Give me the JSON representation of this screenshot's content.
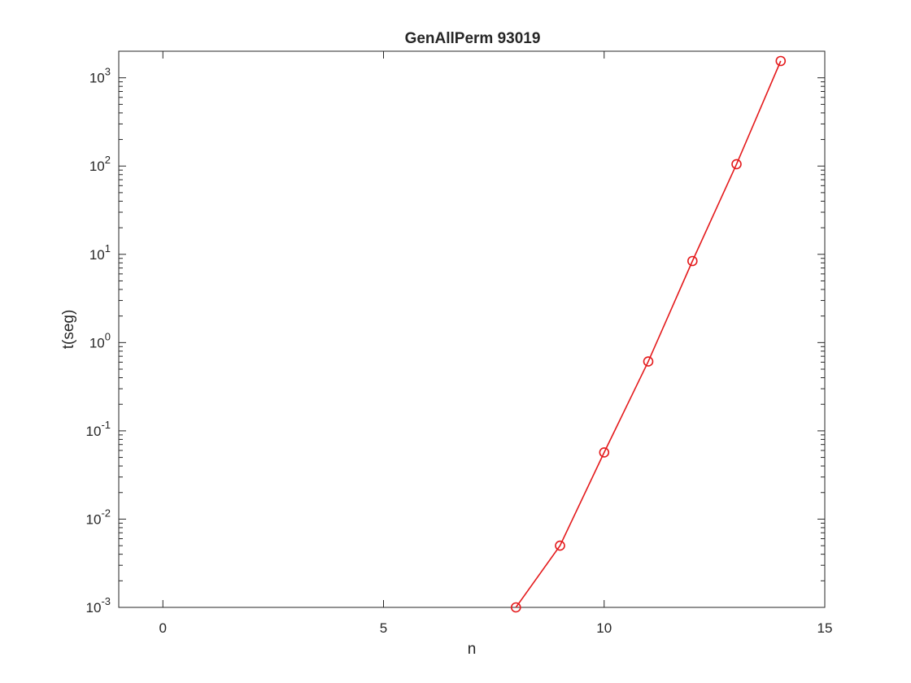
{
  "chart_data": {
    "type": "line",
    "title": "GenAllPerm 93019",
    "xlabel": "n",
    "ylabel": "t(seg)",
    "xlim": [
      -1,
      15
    ],
    "ylim": [
      0.001,
      2000
    ],
    "yscale": "log",
    "grid": false,
    "box": true,
    "xticks": [
      0,
      5,
      10,
      15
    ],
    "xtick_labels": [
      "0",
      "5",
      "10",
      "15"
    ],
    "yticks": [
      0.001,
      0.01,
      0.1,
      1,
      10,
      100,
      1000
    ],
    "ytick_labels": [
      {
        "base": "10",
        "exp": "-3"
      },
      {
        "base": "10",
        "exp": "-2"
      },
      {
        "base": "10",
        "exp": "-1"
      },
      {
        "base": "10",
        "exp": "0"
      },
      {
        "base": "10",
        "exp": "1"
      },
      {
        "base": "10",
        "exp": "2"
      },
      {
        "base": "10",
        "exp": "3"
      }
    ],
    "series": [
      {
        "color": "#e41a1c",
        "marker": "circle",
        "x": [
          8,
          9,
          10,
          11,
          12,
          13,
          14
        ],
        "y": [
          0.001,
          0.005,
          0.057,
          0.61,
          8.4,
          105,
          1550
        ]
      }
    ]
  }
}
